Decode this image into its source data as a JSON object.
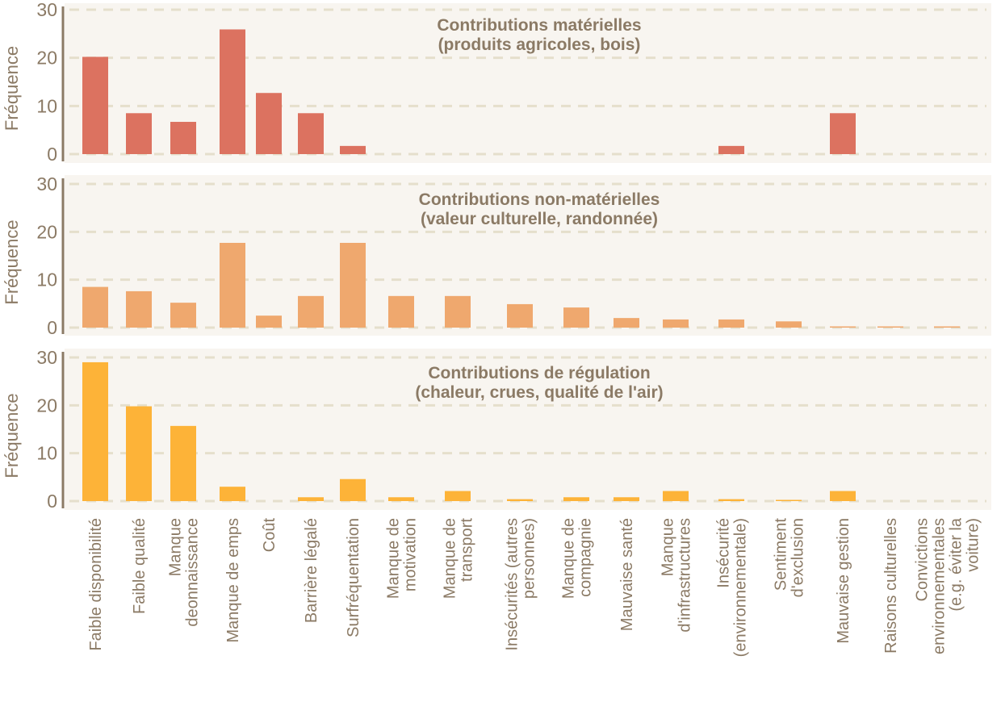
{
  "chart_data": {
    "type": "bar",
    "layout": "three stacked panels sharing x categories",
    "ylabel": "Fréquence",
    "ylim": [
      0,
      30
    ],
    "yticks": [
      0,
      10,
      20,
      30
    ],
    "grid": true,
    "categories": [
      [
        "Faible disponibilité"
      ],
      [
        "Faible qualité"
      ],
      [
        "Manque",
        "deonnaissance"
      ],
      [
        "Manque de emps"
      ],
      [
        "Coût"
      ],
      [
        "Barrière légalé"
      ],
      [
        "Surfréquentation"
      ],
      [
        "Manque de",
        "motivation"
      ],
      [
        "Manque de",
        "transport"
      ],
      [
        "Insécurités (autres",
        "personnes)"
      ],
      [
        "Manque de",
        "compagnie"
      ],
      [
        "Mauvaise santé"
      ],
      [
        "Manque",
        "d'infrastructures"
      ],
      [
        "Insécurité",
        "(environnementale)"
      ],
      [
        "Sentiment",
        "d'exclusion"
      ],
      [
        "Mauvaise gestion"
      ],
      [
        "Raisons culturelles"
      ],
      [
        "Convictions",
        "environnementales",
        "(e.g. éviter la",
        "voiture)"
      ]
    ],
    "panels": [
      {
        "title": [
          "Contributions matérielles",
          "(produits agricoles, bois)"
        ],
        "color": "#DC7260",
        "values": [
          20.2,
          8.5,
          6.7,
          25.9,
          12.7,
          8.5,
          1.7,
          0,
          0,
          0,
          0,
          0,
          0,
          1.7,
          0,
          8.5,
          0,
          0
        ]
      },
      {
        "title": [
          "Contributions non-matérielles",
          "(valeur culturelle, randonnée)"
        ],
        "color": "#EFA86E",
        "values": [
          8.5,
          7.6,
          5.2,
          17.7,
          2.5,
          6.6,
          17.7,
          6.6,
          6.6,
          4.9,
          4.2,
          2.0,
          1.7,
          1.7,
          1.3,
          0.2,
          0.2,
          0.2
        ]
      },
      {
        "title": [
          "Contributions de régulation",
          "(chaleur, crues, qualité de l'air)"
        ],
        "color": "#FDB338",
        "values": [
          29.0,
          19.8,
          15.7,
          3.0,
          0,
          0.8,
          4.6,
          0.8,
          2.1,
          0.4,
          0.8,
          0.8,
          2.1,
          0.4,
          0.1,
          2.1,
          0,
          0
        ]
      }
    ]
  },
  "colors": {
    "text": "#8B7A65",
    "grid": "#E5DFCC",
    "panel_background": "#F8F5F0"
  }
}
